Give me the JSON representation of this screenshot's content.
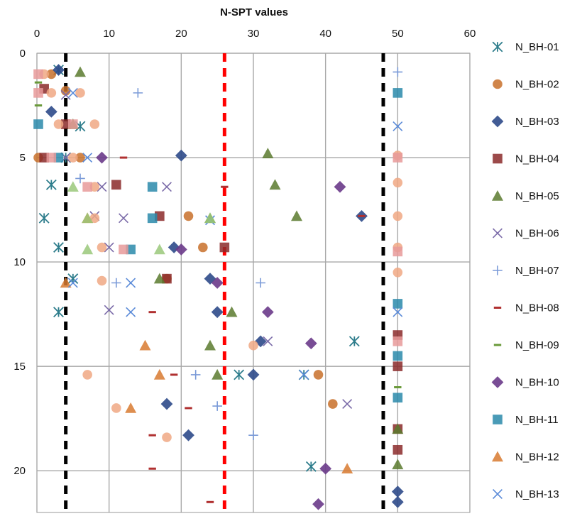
{
  "chart_data": {
    "type": "scatter",
    "title": "",
    "xlabel": "N-SPT values",
    "ylabel": "",
    "x_axis_position": "top",
    "y_axis_reversed": true,
    "xlim": [
      0,
      60
    ],
    "ylim": [
      0,
      22
    ],
    "x_ticks": [
      0,
      10,
      20,
      30,
      40,
      50,
      60
    ],
    "y_ticks": [
      0,
      5,
      10,
      15,
      20
    ],
    "grid": true,
    "legend_position": "right",
    "reference_lines": [
      {
        "x": 4,
        "color": "#000000",
        "style": "dashed"
      },
      {
        "x": 26,
        "color": "#ff0000",
        "style": "dashed"
      },
      {
        "x": 48,
        "color": "#000000",
        "style": "dashed"
      }
    ],
    "series": [
      {
        "name": "N_BH-01",
        "marker": "asterisk",
        "color": "#2e7d8c",
        "points": [
          [
            3,
            0.8
          ],
          [
            6,
            3.5
          ],
          [
            4,
            5
          ],
          [
            2,
            6.3
          ],
          [
            1,
            7.9
          ],
          [
            3,
            9.3
          ],
          [
            5,
            10.8
          ],
          [
            3,
            12.4
          ],
          [
            28,
            15.4
          ],
          [
            37,
            15.4
          ],
          [
            44,
            13.8
          ],
          [
            38,
            19.8
          ]
        ]
      },
      {
        "name": "N_BH-02",
        "marker": "circle",
        "color": "#c8702a",
        "points": [
          [
            2,
            1
          ],
          [
            4,
            1.8
          ],
          [
            0,
            5
          ],
          [
            6,
            5
          ],
          [
            21,
            7.8
          ],
          [
            18,
            10.8
          ],
          [
            23,
            9.3
          ],
          [
            39,
            15.4
          ],
          [
            41,
            16.8
          ]
        ]
      },
      {
        "name": "N_BH-03",
        "marker": "diamond",
        "color": "#2e4a8a",
        "points": [
          [
            3,
            0.8
          ],
          [
            2,
            2.8
          ],
          [
            20,
            4.9
          ],
          [
            19,
            9.3
          ],
          [
            24,
            10.8
          ],
          [
            25,
            12.4
          ],
          [
            31,
            13.8
          ],
          [
            30,
            15.4
          ],
          [
            18,
            16.8
          ],
          [
            21,
            18.3
          ],
          [
            45,
            7.8
          ],
          [
            50,
            21
          ],
          [
            50,
            21.5
          ]
        ]
      },
      {
        "name": "N_BH-04",
        "marker": "square",
        "color": "#8b2a2a",
        "points": [
          [
            1,
            1.7
          ],
          [
            4,
            3.4
          ],
          [
            1,
            5
          ],
          [
            11,
            6.3
          ],
          [
            17,
            7.8
          ],
          [
            26,
            9.3
          ],
          [
            18,
            10.8
          ],
          [
            50,
            13.5
          ],
          [
            50,
            15
          ],
          [
            50,
            18
          ],
          [
            50,
            19
          ]
        ]
      },
      {
        "name": "N_BH-05",
        "marker": "triangle",
        "color": "#5a7a2e",
        "points": [
          [
            6,
            0.9
          ],
          [
            5,
            3.4
          ],
          [
            32,
            4.8
          ],
          [
            33,
            6.3
          ],
          [
            36,
            7.8
          ],
          [
            24,
            7.9
          ],
          [
            17,
            10.8
          ],
          [
            27,
            12.4
          ],
          [
            24,
            14
          ],
          [
            25,
            15.4
          ],
          [
            50,
            18
          ],
          [
            50,
            19.7
          ]
        ]
      },
      {
        "name": "N_BH-06",
        "marker": "x",
        "color": "#7a6aa8",
        "points": [
          [
            4,
            2
          ],
          [
            4,
            5
          ],
          [
            9,
            6.4
          ],
          [
            8,
            7.8
          ],
          [
            12,
            7.9
          ],
          [
            10,
            9.3
          ],
          [
            10,
            12.3
          ],
          [
            18,
            6.4
          ],
          [
            32,
            13.8
          ],
          [
            43,
            16.8
          ]
        ]
      },
      {
        "name": "N_BH-07",
        "marker": "plus",
        "color": "#7a9ad8",
        "points": [
          [
            50,
            0.9
          ],
          [
            14,
            1.9
          ],
          [
            6,
            6
          ],
          [
            11,
            11
          ],
          [
            30,
            18.3
          ],
          [
            31,
            11
          ],
          [
            22,
            15.4
          ],
          [
            25,
            16.9
          ]
        ]
      },
      {
        "name": "N_BH-08",
        "marker": "dash",
        "color": "#b03030",
        "points": [
          [
            12,
            5
          ],
          [
            26,
            6.4
          ],
          [
            16,
            12.4
          ],
          [
            19,
            15.4
          ],
          [
            21,
            17
          ],
          [
            16,
            18.3
          ],
          [
            16,
            19.9
          ],
          [
            24,
            21.5
          ],
          [
            45,
            7.8
          ]
        ]
      },
      {
        "name": "N_BH-09",
        "marker": "dash",
        "color": "#6a9a3a",
        "points": [
          [
            0,
            1.4
          ],
          [
            0,
            2.5
          ],
          [
            50,
            16
          ]
        ]
      },
      {
        "name": "N_BH-10",
        "marker": "diamond",
        "color": "#6a3a8a",
        "points": [
          [
            9,
            5
          ],
          [
            20,
            9.4
          ],
          [
            25,
            11
          ],
          [
            32,
            12.4
          ],
          [
            38,
            13.9
          ],
          [
            42,
            6.4
          ],
          [
            40,
            19.9
          ],
          [
            39,
            21.6
          ]
        ]
      },
      {
        "name": "N_BH-11",
        "marker": "square",
        "color": "#2a8aaa",
        "points": [
          [
            0,
            3.4
          ],
          [
            3,
            5
          ],
          [
            16,
            6.4
          ],
          [
            16,
            7.9
          ],
          [
            13,
            9.4
          ],
          [
            50,
            1.9
          ],
          [
            50,
            12
          ],
          [
            50,
            14.5
          ],
          [
            50,
            16.5
          ]
        ]
      },
      {
        "name": "N_BH-12",
        "marker": "triangle",
        "color": "#d87a30",
        "points": [
          [
            7,
            7.9
          ],
          [
            4,
            11
          ],
          [
            15,
            14
          ],
          [
            17,
            15.4
          ],
          [
            13,
            17
          ],
          [
            43,
            19.9
          ]
        ]
      },
      {
        "name": "N_BH-13",
        "marker": "x",
        "color": "#5a8ad8",
        "points": [
          [
            5,
            1.9
          ],
          [
            7,
            5
          ],
          [
            5,
            11
          ],
          [
            13,
            11
          ],
          [
            13,
            12.4
          ],
          [
            24,
            8
          ],
          [
            50,
            3.5
          ],
          [
            50,
            12.4
          ],
          [
            37,
            15.4
          ]
        ]
      },
      {
        "name": "",
        "marker": "circle",
        "color": "#f0a884",
        "points": [
          [
            1,
            1
          ],
          [
            2,
            1.9
          ],
          [
            6,
            1.9
          ],
          [
            3,
            3.4
          ],
          [
            8,
            3.4
          ],
          [
            5,
            5
          ],
          [
            8,
            6.4
          ],
          [
            8,
            7.9
          ],
          [
            9,
            9.3
          ],
          [
            9,
            10.9
          ],
          [
            7,
            15.4
          ],
          [
            11,
            17
          ],
          [
            18,
            18.4
          ],
          [
            30,
            14
          ],
          [
            50,
            4.9
          ],
          [
            50,
            6.2
          ],
          [
            50,
            7.8
          ],
          [
            50,
            9.3
          ],
          [
            50,
            10.5
          ]
        ]
      },
      {
        "name": "",
        "marker": "square",
        "color": "#e89a9a",
        "points": [
          [
            0,
            1
          ],
          [
            0,
            1.9
          ],
          [
            5,
            3.4
          ],
          [
            2,
            5
          ],
          [
            7,
            6.4
          ],
          [
            12,
            9.4
          ],
          [
            50,
            5
          ],
          [
            50,
            9.5
          ],
          [
            50,
            13.8
          ]
        ]
      },
      {
        "name": "",
        "marker": "triangle",
        "color": "#9ac87a",
        "points": [
          [
            5,
            6.4
          ],
          [
            7,
            9.4
          ],
          [
            17,
            9.4
          ],
          [
            7,
            7.9
          ],
          [
            24,
            7.9
          ]
        ]
      }
    ]
  }
}
